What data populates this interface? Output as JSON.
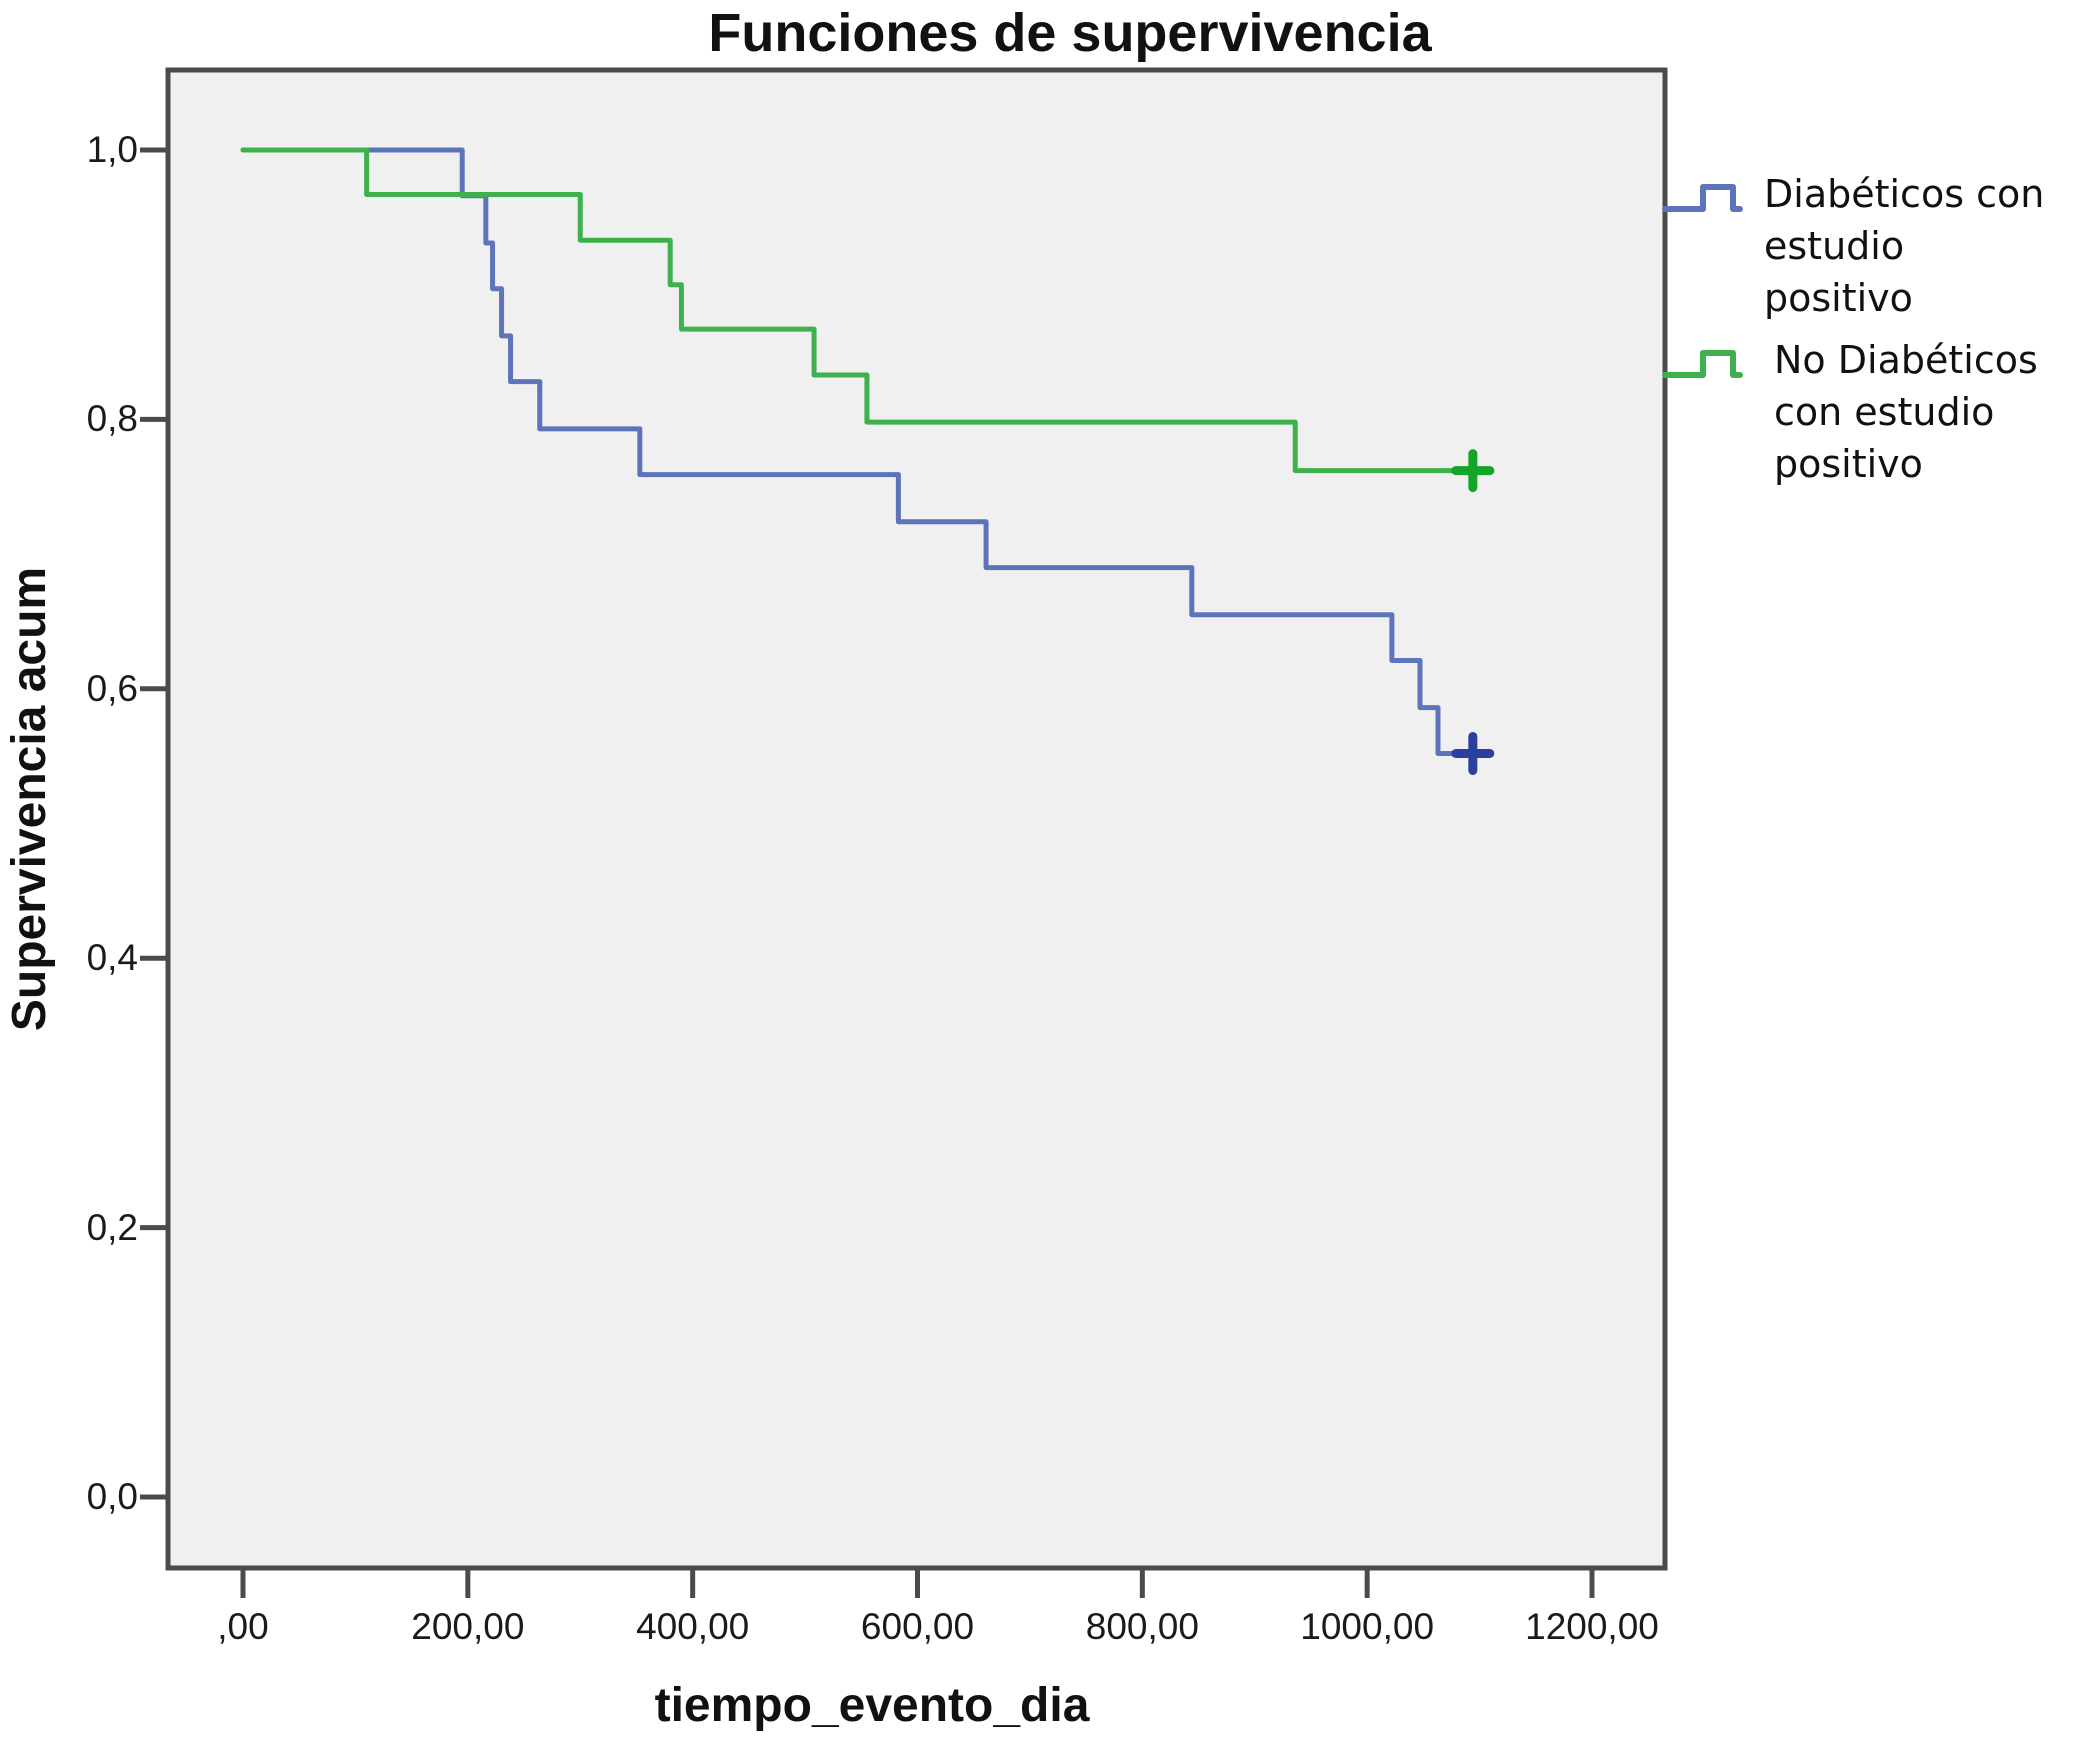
{
  "title": "Funciones de supervivencia",
  "x_axis": {
    "label": "tiempo_evento_dia",
    "ticks": [
      {
        "value": 0,
        "text": ",00"
      },
      {
        "value": 200,
        "text": "200,00"
      },
      {
        "value": 400,
        "text": "400,00"
      },
      {
        "value": 600,
        "text": "600,00"
      },
      {
        "value": 800,
        "text": "800,00"
      },
      {
        "value": 1000,
        "text": "1000,00"
      },
      {
        "value": 1200,
        "text": "1200,00"
      }
    ]
  },
  "y_axis": {
    "label": "Supervivencia acum",
    "ticks": [
      {
        "value": 1.0,
        "text": "1,0"
      },
      {
        "value": 0.8,
        "text": "0,8"
      },
      {
        "value": 0.6,
        "text": "0,6"
      },
      {
        "value": 0.4,
        "text": "0,4"
      },
      {
        "value": 0.2,
        "text": "0,2"
      },
      {
        "value": 0.0,
        "text": "0,0"
      }
    ]
  },
  "legend": {
    "entries": [
      {
        "label": "Diabéticos con estudio positivo",
        "label_lines": [
          "Diabéticos con",
          "estudio positivo"
        ],
        "color": "#5e74ba"
      },
      {
        "label": "No Diabéticos con estudio positivo",
        "label_lines": [
          "No Diabéticos",
          "con estudio",
          "positivo"
        ],
        "color": "#3fb14c"
      }
    ]
  },
  "colors": {
    "plot_background": "#f0f0f0",
    "plot_border": "#4b4b4b",
    "tick_mark": "#4b4b4b",
    "series_diabeticos": "#5e74ba",
    "series_no_diabeticos": "#3fb14c",
    "censor_diabeticos": "#2b3f9e",
    "censor_no_diabeticos": "#15a42a"
  },
  "chart_data": {
    "type": "line",
    "subtype": "kaplan-meier-step",
    "title": "Funciones de supervivencia",
    "xlabel": "tiempo_evento_dia",
    "ylabel": "Supervivencia acum",
    "xlim": [
      0,
      1200
    ],
    "ylim": [
      0.0,
      1.0
    ],
    "grid": false,
    "legend_position": "right",
    "series": [
      {
        "name": "Diabéticos con estudio positivo",
        "color": "#5e74ba",
        "censor_color": "#2b3f9e",
        "steps": [
          [
            0,
            1.0
          ],
          [
            195,
            0.966
          ],
          [
            216,
            0.931
          ],
          [
            222,
            0.897
          ],
          [
            230,
            0.862
          ],
          [
            238,
            0.828
          ],
          [
            264,
            0.793
          ],
          [
            353,
            0.759
          ],
          [
            583,
            0.724
          ],
          [
            661,
            0.69
          ],
          [
            844,
            0.655
          ],
          [
            1022,
            0.621
          ],
          [
            1047,
            0.586
          ],
          [
            1063,
            0.552
          ]
        ],
        "end_time": 1094,
        "censored": [
          [
            1094,
            0.552
          ]
        ]
      },
      {
        "name": "No Diabéticos con estudio positivo",
        "color": "#3fb14c",
        "censor_color": "#15a42a",
        "steps": [
          [
            0,
            1.0
          ],
          [
            110,
            0.967
          ],
          [
            300,
            0.933
          ],
          [
            380,
            0.9
          ],
          [
            390,
            0.867
          ],
          [
            508,
            0.833
          ],
          [
            555,
            0.798
          ],
          [
            936,
            0.762
          ]
        ],
        "end_time": 1094,
        "censored": [
          [
            1094,
            0.762
          ]
        ]
      }
    ]
  }
}
